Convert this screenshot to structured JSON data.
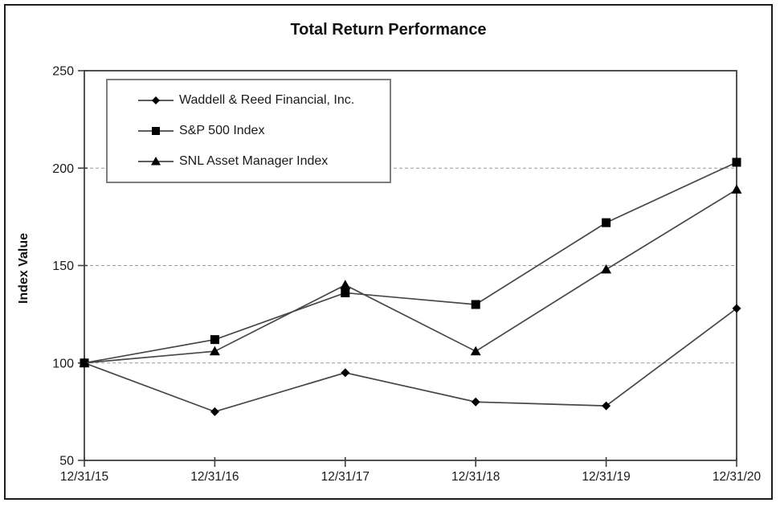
{
  "chart_data": {
    "type": "line",
    "title": "Total Return Performance",
    "ylabel": "Index Value",
    "xlabel": "",
    "categories": [
      "12/31/15",
      "12/31/16",
      "12/31/17",
      "12/31/18",
      "12/31/19",
      "12/31/20"
    ],
    "ylim": [
      50,
      250
    ],
    "yticks": [
      50,
      100,
      150,
      200,
      250
    ],
    "grid": "horizontal-dashed",
    "legend_position": "inside-top-left",
    "series": [
      {
        "name": "Waddell & Reed Financial, Inc.",
        "marker": "diamond",
        "values": [
          100,
          75,
          95,
          80,
          78,
          128
        ]
      },
      {
        "name": "S&P 500 Index",
        "marker": "square",
        "values": [
          100,
          112,
          136,
          130,
          172,
          203
        ]
      },
      {
        "name": "SNL Asset Manager Index",
        "marker": "triangle",
        "values": [
          100,
          106,
          140,
          106,
          148,
          189
        ]
      }
    ],
    "colors": {
      "axis": "#3f3f3f",
      "line": "#474747",
      "marker": "#000000",
      "grid": "#9a9a9a",
      "text": "#1a1a1a"
    }
  }
}
